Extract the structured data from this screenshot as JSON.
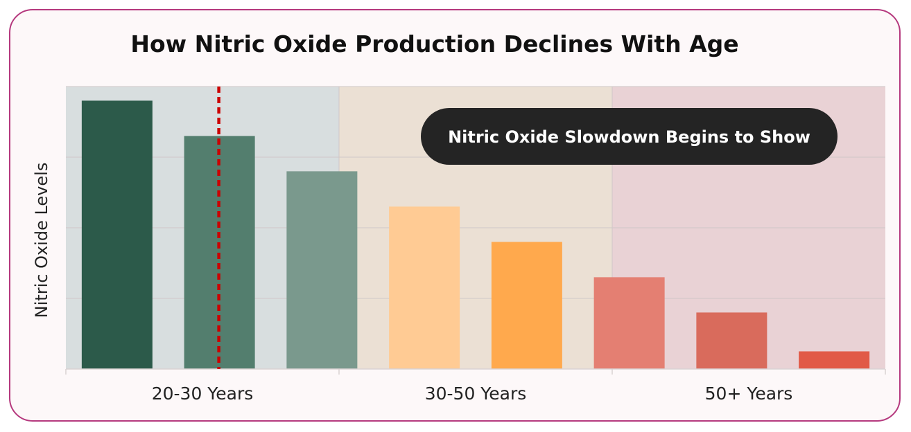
{
  "chart_data": {
    "type": "bar",
    "title": "How Nitric Oxide Production Declines With Age",
    "xlabel": "",
    "ylabel": "Nitric Oxide Levels",
    "ylim": [
      0,
      8
    ],
    "grid": true,
    "groups": [
      {
        "label": "20-30 Years",
        "band_color": "#d8dedf",
        "values": [
          7.6,
          6.6,
          5.6
        ],
        "colors": [
          "#2c5a4a",
          "#537e6e",
          "#7a998d"
        ]
      },
      {
        "label": "30-50 Years",
        "band_color": "#ebe0d4",
        "values": [
          4.6,
          3.6
        ],
        "colors": [
          "#ffcb94",
          "#ffa94d"
        ]
      },
      {
        "label": "50+ Years",
        "band_color": "#e9d2d5",
        "values": [
          2.6,
          1.6,
          0.5
        ],
        "colors": [
          "#e47f72",
          "#d96b5c",
          "#e15a47"
        ]
      }
    ],
    "reference_line": {
      "style": "dashed",
      "color": "#cc0000",
      "after_bar": 2
    },
    "annotation": "Nitric Oxide Slowdown Begins to Show"
  }
}
